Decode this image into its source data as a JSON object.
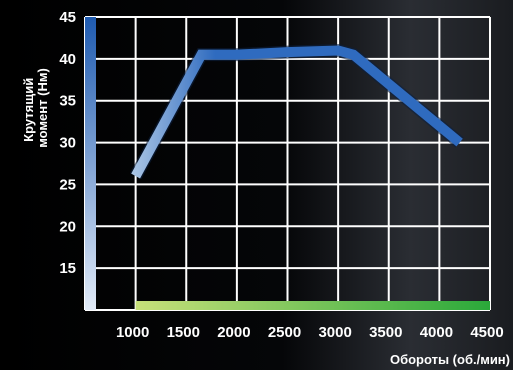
{
  "chart_data": {
    "type": "line",
    "title": "",
    "xlabel": "Обороты (об./мин)",
    "ylabel_lines": [
      "Крутящий",
      "момент (Нм)"
    ],
    "x_ticks": [
      1000,
      1500,
      2000,
      2500,
      3000,
      3500,
      4000,
      4500
    ],
    "y_ticks": [
      15,
      20,
      25,
      30,
      35,
      40,
      45
    ],
    "xlim": [
      500,
      4500
    ],
    "ylim": [
      10,
      45
    ],
    "grid": true,
    "legend": "none",
    "series": [
      {
        "x": [
          1000,
          1650,
          2000,
          2500,
          3000,
          3150,
          3500,
          3800,
          4200
        ],
        "y": [
          26,
          40.5,
          40.5,
          40.8,
          41,
          40.5,
          37,
          34,
          30
        ]
      }
    ],
    "colors": {
      "line": "#2f6bbf",
      "line_light": "#aec8e6",
      "axis_bar_top": "#1f5bb0",
      "axis_bar_bottom": "#e2ebf8",
      "base_bar_left": "#c7e07a",
      "base_bar_right": "#2aa83a",
      "grid": "#ffffff"
    }
  }
}
